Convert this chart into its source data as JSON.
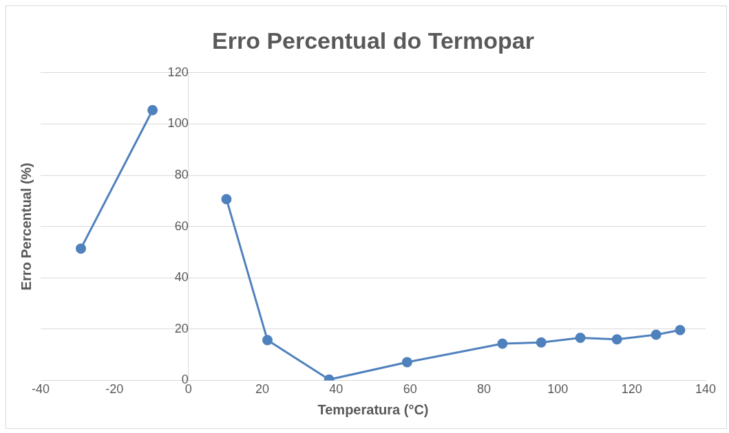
{
  "chart_data": {
    "type": "line",
    "title": "Erro Percentual do Termopar",
    "xlabel": "Temperatura (°C)",
    "ylabel": "Erro Percentual (%)",
    "series": [
      {
        "color": "#4f81bd",
        "x": [
          -29.1,
          -9.7
        ],
        "values": [
          51.4,
          105.4
        ]
      },
      {
        "color": "#4f81bd",
        "x": [
          10.3,
          21.4,
          38.1,
          59.2,
          85.0,
          95.5,
          106.1,
          116.0,
          126.6,
          133.1
        ],
        "values": [
          70.7,
          15.7,
          0.3,
          7.1,
          14.3,
          14.8,
          16.6,
          16.0,
          17.8,
          19.6
        ]
      }
    ],
    "xlim": [
      -40,
      140
    ],
    "xticks": [
      -40,
      -20,
      0,
      20,
      40,
      60,
      80,
      100,
      120,
      140
    ],
    "ylim": [
      0,
      120
    ],
    "yticks": [
      0,
      20,
      40,
      60,
      80,
      100,
      120
    ],
    "grid": "y",
    "legend": false,
    "marker": "circle",
    "line_style": "solid"
  }
}
